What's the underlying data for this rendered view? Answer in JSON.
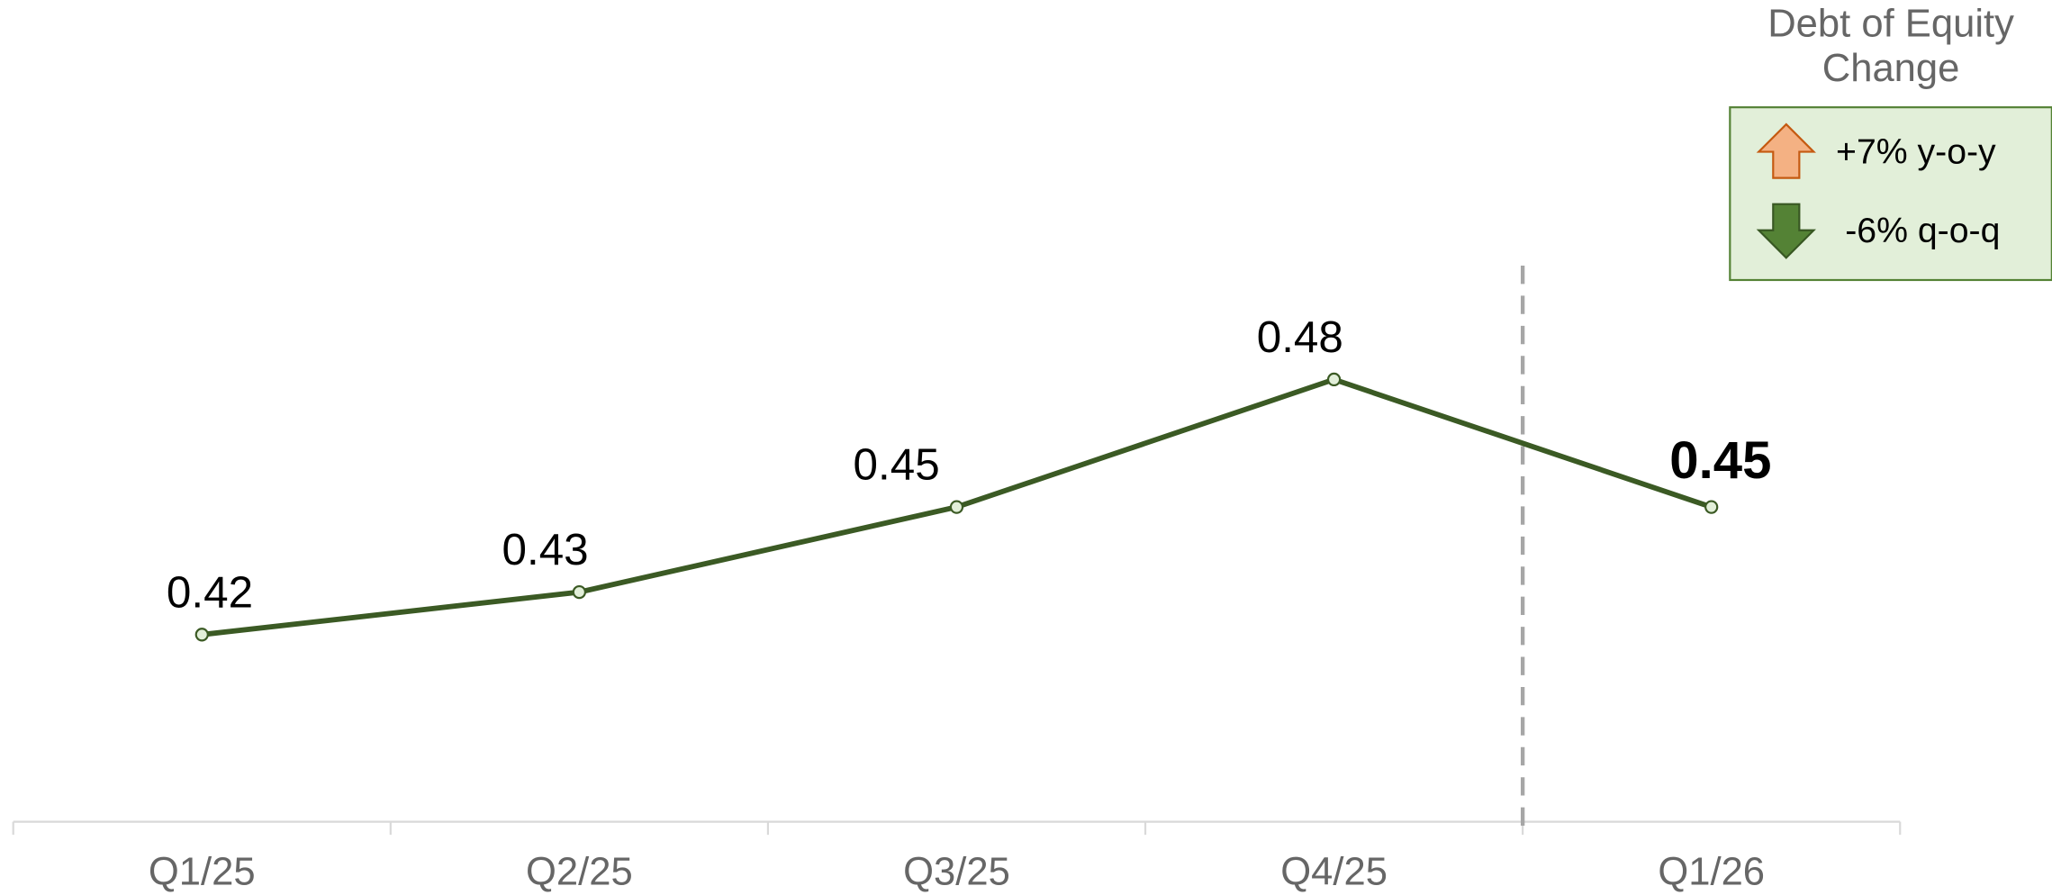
{
  "chart_data": {
    "type": "line",
    "categories": [
      "Q1/25",
      "Q2/25",
      "Q3/25",
      "Q4/25",
      "Q1/26"
    ],
    "series": [
      {
        "name": "Debt of Equity",
        "color": "#3b5a24",
        "values": [
          0.42,
          0.43,
          0.45,
          0.48,
          0.45
        ]
      }
    ],
    "ylim": [
      0.376,
      0.5
    ],
    "annotation": {
      "title_lines": [
        "Debt of Equity",
        "Change"
      ],
      "items": [
        {
          "direction": "up",
          "text": "+7% y-o-y",
          "color": "#f4b183",
          "edge": "#c55a11"
        },
        {
          "direction": "down",
          "text": "-6% q-o-q",
          "color": "#548235",
          "edge": "#385723"
        }
      ]
    }
  }
}
